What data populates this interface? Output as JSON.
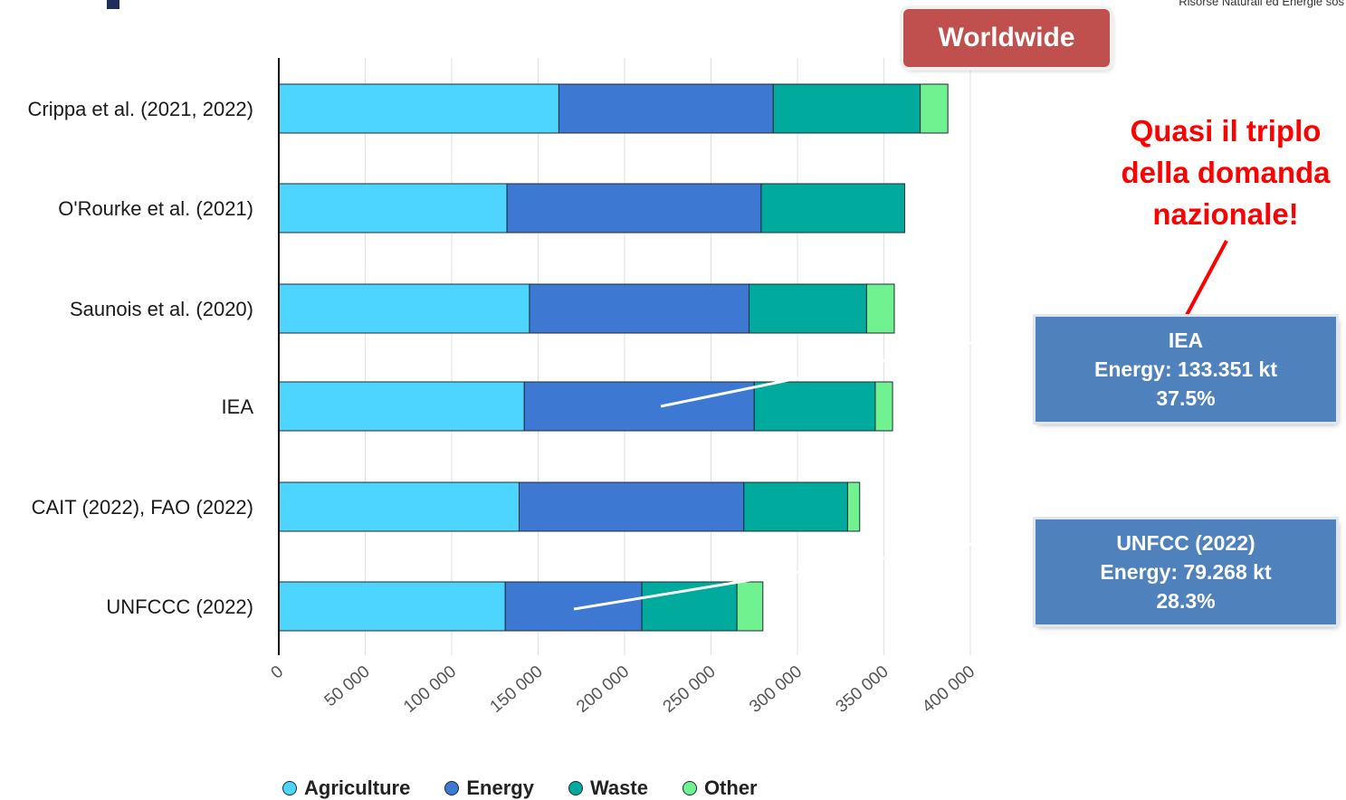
{
  "header": {
    "org_text": "Risorse Naturali ed Energie sos"
  },
  "badge": {
    "label": "Worldwide"
  },
  "callout": {
    "lines": [
      "Quasi il triplo",
      "della domanda",
      "nazionale!"
    ]
  },
  "info_boxes": [
    {
      "title": "IEA",
      "line2": "Energy: 133.351 kt",
      "line3": "37.5%"
    },
    {
      "title": "UNFCC (2022)",
      "line2": "Energy: 79.268 kt",
      "line3": "28.3%"
    }
  ],
  "colors": {
    "agriculture": "#4dd4ff",
    "energy": "#3d78d3",
    "waste": "#00ab9e",
    "other": "#6ff28f",
    "callout": "#ff0000",
    "badge": "#c0504d",
    "infobox": "#4f81bd"
  },
  "chart_data": {
    "type": "bar",
    "orientation": "horizontal",
    "stacked": true,
    "categories": [
      "Crippa et al. (2021, 2022)",
      "O'Rourke et al. (2021)",
      "Saunois et al. (2020)",
      "IEA",
      "CAIT (2022), FAO (2022)",
      "UNFCCC (2022)"
    ],
    "series": [
      {
        "name": "Agriculture",
        "values": [
          162000,
          132000,
          145000,
          142000,
          139000,
          131000
        ]
      },
      {
        "name": "Energy",
        "values": [
          124000,
          147000,
          127000,
          133000,
          130000,
          79000
        ]
      },
      {
        "name": "Waste",
        "values": [
          85000,
          83000,
          68000,
          70000,
          60000,
          55000
        ]
      },
      {
        "name": "Other",
        "values": [
          16000,
          0,
          16000,
          10000,
          7000,
          15000
        ]
      }
    ],
    "xlim": [
      0,
      400000
    ],
    "xticks": [
      "0",
      "50 000",
      "100 000",
      "150 000",
      "200 000",
      "250 000",
      "300 000",
      "350 000",
      "400 000"
    ],
    "grid": true,
    "legend_position": "bottom"
  }
}
